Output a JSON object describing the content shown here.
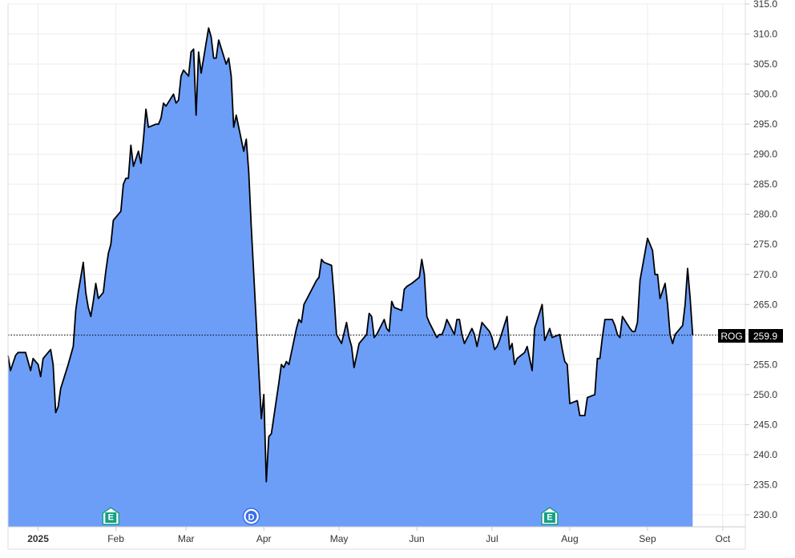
{
  "chart_data": {
    "type": "area",
    "symbol": "ROG",
    "last_value": "259.9",
    "ylim": [
      228,
      315
    ],
    "y_ticks": [
      "230.0",
      "235.0",
      "240.0",
      "245.0",
      "250.0",
      "255.0",
      "260.0",
      "265.0",
      "270.0",
      "275.0",
      "280.0",
      "285.0",
      "290.0",
      "295.0",
      "300.0",
      "305.0",
      "310.0",
      "315.0"
    ],
    "x_ticks": [
      {
        "label": "2025",
        "date": "2025-01-01",
        "bold": true
      },
      {
        "label": "Feb",
        "date": "2025-02-01"
      },
      {
        "label": "Mar",
        "date": "2025-03-01"
      },
      {
        "label": "Apr",
        "date": "2025-04-01"
      },
      {
        "label": "May",
        "date": "2025-05-01"
      },
      {
        "label": "Jun",
        "date": "2025-06-01"
      },
      {
        "label": "Jul",
        "date": "2025-07-01"
      },
      {
        "label": "Aug",
        "date": "2025-08-01"
      },
      {
        "label": "Sep",
        "date": "2025-09-01"
      },
      {
        "label": "Oct",
        "date": "2025-10-01"
      }
    ],
    "x_range": [
      "2024-12-20",
      "2025-10-10"
    ],
    "events": [
      {
        "label": "E",
        "date": "2025-01-30",
        "color": "#16a085"
      },
      {
        "label": "D",
        "date": "2025-03-27",
        "color": "#3b6ee8"
      },
      {
        "label": "E",
        "date": "2025-07-24",
        "color": "#16a085"
      }
    ],
    "series": [
      {
        "points": [
          [
            "2024-12-20",
            256.5
          ],
          [
            "2024-12-21",
            254.0
          ],
          [
            "2024-12-23",
            256.5
          ],
          [
            "2024-12-24",
            257.0
          ],
          [
            "2024-12-27",
            257.0
          ],
          [
            "2024-12-29",
            254.0
          ],
          [
            "2024-12-30",
            256.0
          ],
          [
            "2025-01-01",
            255.0
          ],
          [
            "2025-01-02",
            253.0
          ],
          [
            "2025-01-03",
            256.0
          ],
          [
            "2025-01-06",
            257.5
          ],
          [
            "2025-01-07",
            255.0
          ],
          [
            "2025-01-08",
            247.0
          ],
          [
            "2025-01-09",
            248.0
          ],
          [
            "2025-01-10",
            251.0
          ],
          [
            "2025-01-13",
            255.0
          ],
          [
            "2025-01-14",
            256.5
          ],
          [
            "2025-01-15",
            258.0
          ],
          [
            "2025-01-16",
            264.0
          ],
          [
            "2025-01-17",
            267.0
          ],
          [
            "2025-01-19",
            272.0
          ],
          [
            "2025-01-20",
            267.0
          ],
          [
            "2025-01-21",
            264.5
          ],
          [
            "2025-01-22",
            263.0
          ],
          [
            "2025-01-23",
            265.5
          ],
          [
            "2025-01-24",
            268.5
          ],
          [
            "2025-01-25",
            266.0
          ],
          [
            "2025-01-27",
            267.0
          ],
          [
            "2025-01-28",
            270.5
          ],
          [
            "2025-01-29",
            273.5
          ],
          [
            "2025-01-30",
            275.0
          ],
          [
            "2025-01-31",
            279.0
          ],
          [
            "2025-02-03",
            280.5
          ],
          [
            "2025-02-04",
            285.0
          ],
          [
            "2025-02-05",
            286.0
          ],
          [
            "2025-02-06",
            286.0
          ],
          [
            "2025-02-07",
            291.5
          ],
          [
            "2025-02-08",
            288.0
          ],
          [
            "2025-02-10",
            290.5
          ],
          [
            "2025-02-11",
            288.5
          ],
          [
            "2025-02-12",
            292.5
          ],
          [
            "2025-02-13",
            297.5
          ],
          [
            "2025-02-14",
            294.5
          ],
          [
            "2025-02-17",
            295.0
          ],
          [
            "2025-02-18",
            295.0
          ],
          [
            "2025-02-19",
            296.0
          ],
          [
            "2025-02-20",
            298.5
          ],
          [
            "2025-02-21",
            298.0
          ],
          [
            "2025-02-24",
            300.0
          ],
          [
            "2025-02-25",
            298.5
          ],
          [
            "2025-02-26",
            299.0
          ],
          [
            "2025-02-27",
            303.0
          ],
          [
            "2025-02-28",
            304.0
          ],
          [
            "2025-03-02",
            303.0
          ],
          [
            "2025-03-03",
            307.0
          ],
          [
            "2025-03-04",
            307.5
          ],
          [
            "2025-03-05",
            296.5
          ],
          [
            "2025-03-06",
            307.0
          ],
          [
            "2025-03-07",
            303.5
          ],
          [
            "2025-03-10",
            311.0
          ],
          [
            "2025-03-11",
            309.5
          ],
          [
            "2025-03-12",
            306.0
          ],
          [
            "2025-03-13",
            306.0
          ],
          [
            "2025-03-14",
            309.0
          ],
          [
            "2025-03-17",
            305.0
          ],
          [
            "2025-03-18",
            306.0
          ],
          [
            "2025-03-19",
            303.0
          ],
          [
            "2025-03-20",
            294.5
          ],
          [
            "2025-03-21",
            296.5
          ],
          [
            "2025-03-24",
            290.5
          ],
          [
            "2025-03-25",
            292.5
          ],
          [
            "2025-03-26",
            287.0
          ],
          [
            "2025-03-27",
            278.0
          ],
          [
            "2025-03-31",
            246.0
          ],
          [
            "2025-04-01",
            250.0
          ],
          [
            "2025-04-02",
            235.5
          ],
          [
            "2025-04-03",
            243.0
          ],
          [
            "2025-04-04",
            243.5
          ],
          [
            "2025-04-07",
            252.0
          ],
          [
            "2025-04-08",
            255.0
          ],
          [
            "2025-04-09",
            254.5
          ],
          [
            "2025-04-10",
            255.5
          ],
          [
            "2025-04-11",
            255.0
          ],
          [
            "2025-04-14",
            261.0
          ],
          [
            "2025-04-15",
            262.5
          ],
          [
            "2025-04-16",
            262.0
          ],
          [
            "2025-04-17",
            265.0
          ],
          [
            "2025-04-22",
            269.0
          ],
          [
            "2025-04-23",
            269.5
          ],
          [
            "2025-04-24",
            272.5
          ],
          [
            "2025-04-25",
            272.0
          ],
          [
            "2025-04-28",
            271.5
          ],
          [
            "2025-04-29",
            266.5
          ],
          [
            "2025-04-30",
            260.0
          ],
          [
            "2025-05-02",
            258.5
          ],
          [
            "2025-05-04",
            262.0
          ],
          [
            "2025-05-05",
            259.5
          ],
          [
            "2025-05-06",
            258.0
          ],
          [
            "2025-05-07",
            254.5
          ],
          [
            "2025-05-08",
            256.5
          ],
          [
            "2025-05-09",
            258.5
          ],
          [
            "2025-05-12",
            260.0
          ],
          [
            "2025-05-13",
            263.5
          ],
          [
            "2025-05-14",
            263.0
          ],
          [
            "2025-05-15",
            259.5
          ],
          [
            "2025-05-16",
            260.0
          ],
          [
            "2025-05-19",
            262.5
          ],
          [
            "2025-05-20",
            261.0
          ],
          [
            "2025-05-21",
            260.5
          ],
          [
            "2025-05-22",
            265.5
          ],
          [
            "2025-05-23",
            264.5
          ],
          [
            "2025-05-26",
            264.0
          ],
          [
            "2025-05-27",
            267.5
          ],
          [
            "2025-05-28",
            268.0
          ],
          [
            "2025-05-30",
            268.5
          ],
          [
            "2025-06-02",
            269.5
          ],
          [
            "2025-06-03",
            272.5
          ],
          [
            "2025-06-04",
            270.0
          ],
          [
            "2025-06-05",
            263.0
          ],
          [
            "2025-06-06",
            262.0
          ],
          [
            "2025-06-09",
            259.5
          ],
          [
            "2025-06-10",
            260.0
          ],
          [
            "2025-06-11",
            260.0
          ],
          [
            "2025-06-12",
            261.0
          ],
          [
            "2025-06-13",
            262.5
          ],
          [
            "2025-06-16",
            260.0
          ],
          [
            "2025-06-17",
            262.5
          ],
          [
            "2025-06-18",
            262.5
          ],
          [
            "2025-06-19",
            260.0
          ],
          [
            "2025-06-20",
            258.5
          ],
          [
            "2025-06-23",
            261.0
          ],
          [
            "2025-06-24",
            260.0
          ],
          [
            "2025-06-25",
            258.0
          ],
          [
            "2025-06-26",
            260.0
          ],
          [
            "2025-06-27",
            262.0
          ],
          [
            "2025-06-30",
            260.5
          ],
          [
            "2025-07-01",
            259.5
          ],
          [
            "2025-07-02",
            257.5
          ],
          [
            "2025-07-03",
            258.0
          ],
          [
            "2025-07-04",
            259.0
          ],
          [
            "2025-07-07",
            263.0
          ],
          [
            "2025-07-08",
            257.5
          ],
          [
            "2025-07-09",
            258.5
          ],
          [
            "2025-07-10",
            255.0
          ],
          [
            "2025-07-11",
            256.0
          ],
          [
            "2025-07-14",
            257.0
          ],
          [
            "2025-07-15",
            258.0
          ],
          [
            "2025-07-16",
            256.0
          ],
          [
            "2025-07-17",
            254.0
          ],
          [
            "2025-07-18",
            261.0
          ],
          [
            "2025-07-21",
            265.0
          ],
          [
            "2025-07-22",
            259.0
          ],
          [
            "2025-07-23",
            260.0
          ],
          [
            "2025-07-24",
            261.0
          ],
          [
            "2025-07-25",
            259.5
          ],
          [
            "2025-07-28",
            260.0
          ],
          [
            "2025-07-29",
            257.5
          ],
          [
            "2025-07-30",
            255.5
          ],
          [
            "2025-07-31",
            255.0
          ],
          [
            "2025-08-01",
            248.5
          ],
          [
            "2025-08-04",
            249.0
          ],
          [
            "2025-08-05",
            246.5
          ],
          [
            "2025-08-06",
            246.5
          ],
          [
            "2025-08-07",
            246.5
          ],
          [
            "2025-08-08",
            249.5
          ],
          [
            "2025-08-11",
            250.0
          ],
          [
            "2025-08-12",
            256.0
          ],
          [
            "2025-08-13",
            256.0
          ],
          [
            "2025-08-14",
            259.5
          ],
          [
            "2025-08-15",
            262.5
          ],
          [
            "2025-08-18",
            262.5
          ],
          [
            "2025-08-19",
            261.5
          ],
          [
            "2025-08-20",
            260.0
          ],
          [
            "2025-08-21",
            259.5
          ],
          [
            "2025-08-22",
            263.0
          ],
          [
            "2025-08-25",
            261.0
          ],
          [
            "2025-08-26",
            260.5
          ],
          [
            "2025-08-27",
            260.5
          ],
          [
            "2025-08-28",
            262.0
          ],
          [
            "2025-08-29",
            269.0
          ],
          [
            "2025-09-01",
            276.0
          ],
          [
            "2025-09-02",
            275.0
          ],
          [
            "2025-09-03",
            274.0
          ],
          [
            "2025-09-04",
            270.0
          ],
          [
            "2025-09-05",
            270.0
          ],
          [
            "2025-09-06",
            266.0
          ],
          [
            "2025-09-08",
            268.5
          ],
          [
            "2025-09-09",
            265.0
          ],
          [
            "2025-09-10",
            260.0
          ],
          [
            "2025-09-11",
            258.5
          ],
          [
            "2025-09-12",
            260.0
          ],
          [
            "2025-09-15",
            261.5
          ],
          [
            "2025-09-16",
            265.0
          ],
          [
            "2025-09-17",
            271.0
          ],
          [
            "2025-09-18",
            266.0
          ],
          [
            "2025-09-19",
            259.9
          ]
        ]
      }
    ]
  }
}
